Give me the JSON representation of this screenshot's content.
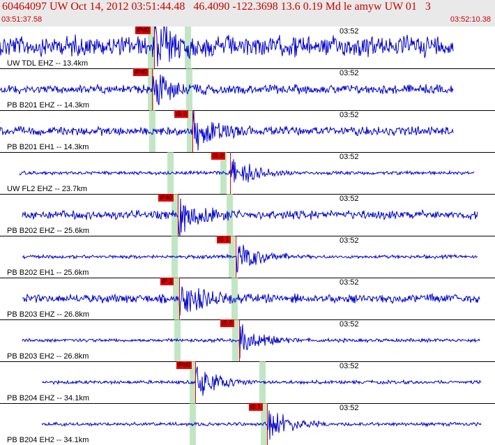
{
  "header": {
    "title": "60464097 UW Oct 14, 2012 03:51:44.48   46.4090 -122.3698 13.6 0.19 Md le amyw UW 01   3",
    "start_time": "03:51:37.58",
    "end_time": "03:52:10.38"
  },
  "tick_label": "03:52",
  "colors": {
    "trace": "#0000cc",
    "pick": "#dd0000",
    "band": "#a8dcaa",
    "header_bg": "#e9e9e9"
  },
  "channels": [
    {
      "label": "UW TDL EHZ -- 13.4km",
      "pick": "iPd0",
      "phase": "P",
      "amp": "high"
    },
    {
      "label": "PB B201 EHZ -- 14.3km",
      "pick": "iPd0",
      "phase": "P",
      "amp": "med"
    },
    {
      "label": "PB B201 EH1 -- 14.3km",
      "pick": "iS 0",
      "phase": "S",
      "amp": "med"
    },
    {
      "label": "UW FL2 EHZ -- 23.7km",
      "pick": "iS 0",
      "phase": "S",
      "amp": "low"
    },
    {
      "label": "PB B202 EHZ -- 25.6km",
      "pick": "iP40",
      "phase": "P",
      "amp": "med"
    },
    {
      "label": "PB B202 EH1 -- 25.6km",
      "pick": "iS 1",
      "phase": "S",
      "amp": "low"
    },
    {
      "label": "PB B203 EHZ -- 26.8km",
      "pick": "iP 1",
      "phase": "P",
      "amp": "med"
    },
    {
      "label": "PB B203 EH2 -- 26.8km",
      "pick": "iS 0",
      "phase": "S",
      "amp": "low"
    },
    {
      "label": "PB B204 EHZ -- 34.1km",
      "pick": "iPd0",
      "phase": "P",
      "amp": "low"
    },
    {
      "label": "PB B204 EH2 -- 34.1km",
      "pick": "iS 1",
      "phase": "S",
      "amp": "low"
    }
  ]
}
